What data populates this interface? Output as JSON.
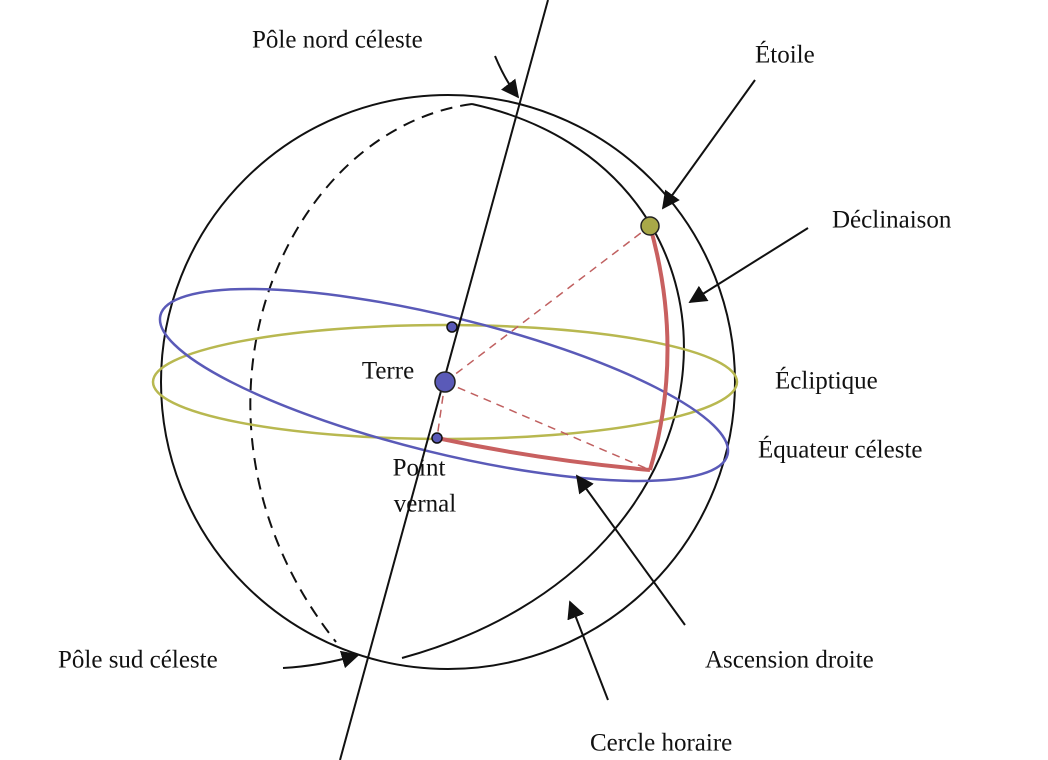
{
  "labels": {
    "north_pole": "Pôle nord céleste",
    "star": "Étoile",
    "declination": "Déclinaison",
    "earth": "Terre",
    "ecliptic": "Écliptique",
    "equator": "Équateur céleste",
    "vernal_line1": "Point",
    "vernal_line2": "vernal",
    "south_pole": "Pôle sud céleste",
    "right_ascension": "Ascension droite",
    "hour_circle": "Cercle horaire"
  }
}
